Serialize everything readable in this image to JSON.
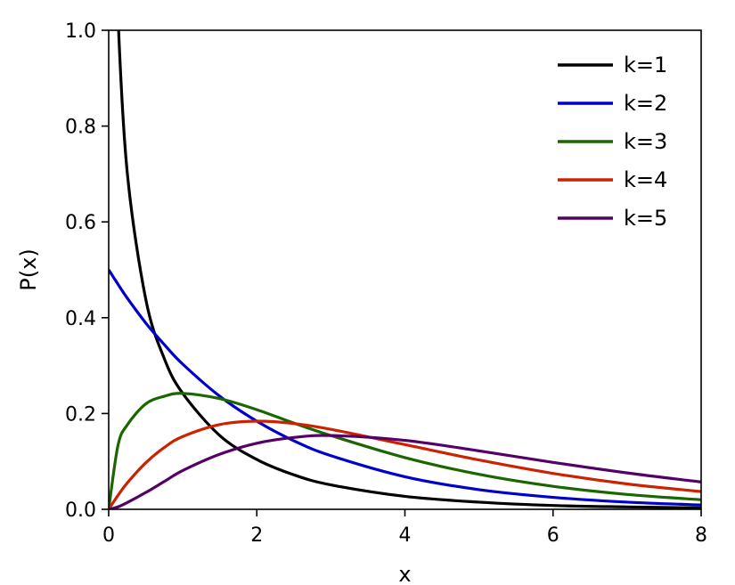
{
  "chart_data": {
    "type": "line",
    "xlabel": "x",
    "ylabel": "P(x)",
    "xlim": [
      0,
      8
    ],
    "ylim": [
      0,
      1.0
    ],
    "x_ticks": [
      "0",
      "2",
      "4",
      "6",
      "8"
    ],
    "y_ticks": [
      "0.0",
      "0.2",
      "0.4",
      "0.6",
      "0.8",
      "1.0"
    ],
    "grid": false,
    "legend_position": "top-right",
    "x": [
      0.125,
      0.25,
      0.5,
      0.75,
      1,
      1.5,
      2,
      2.5,
      3,
      4,
      5,
      6,
      7,
      8
    ],
    "series": [
      {
        "name": "k=1",
        "color": "#000000",
        "values": [
          1.032,
          0.704,
          0.439,
          0.315,
          0.242,
          0.154,
          0.104,
          0.072,
          0.051,
          0.027,
          0.015,
          0.008,
          0.005,
          0.003
        ]
      },
      {
        "name": "k=2",
        "color": "#0000cc",
        "values": [
          0.47,
          0.441,
          0.389,
          0.344,
          0.303,
          0.236,
          0.184,
          0.143,
          0.112,
          0.068,
          0.041,
          0.025,
          0.015,
          0.009
        ]
      },
      {
        "name": "k=3",
        "color": "#1a6600",
        "values": [
          0.133,
          0.176,
          0.22,
          0.236,
          0.242,
          0.231,
          0.208,
          0.18,
          0.154,
          0.108,
          0.073,
          0.048,
          0.031,
          0.02
        ]
      },
      {
        "name": "k=4",
        "color": "#cc2200",
        "values": [
          0.029,
          0.055,
          0.097,
          0.129,
          0.152,
          0.177,
          0.184,
          0.179,
          0.167,
          0.135,
          0.103,
          0.075,
          0.053,
          0.037
        ]
      },
      {
        "name": "k=5",
        "color": "#550066",
        "values": [
          0.005,
          0.014,
          0.035,
          0.058,
          0.081,
          0.115,
          0.138,
          0.15,
          0.154,
          0.144,
          0.122,
          0.098,
          0.076,
          0.057
        ]
      }
    ]
  }
}
